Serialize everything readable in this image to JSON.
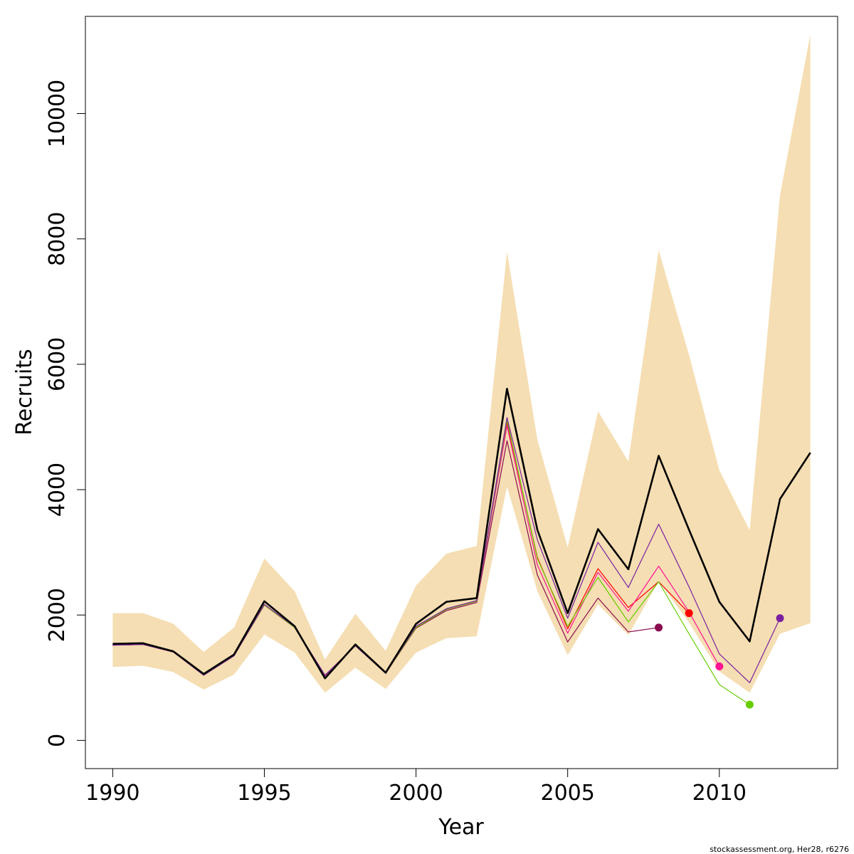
{
  "chart_data": {
    "type": "line",
    "xlabel": "Year",
    "ylabel": "Recruits",
    "xlim": [
      1989.1,
      2013.9
    ],
    "ylim": [
      -450,
      11550
    ],
    "x_ticks": [
      1990,
      1995,
      2000,
      2005,
      2010
    ],
    "y_ticks": [
      0,
      2000,
      4000,
      6000,
      8000,
      10000
    ],
    "grid": false,
    "legend": "none",
    "band": {
      "color": "#f5deb3",
      "x": [
        1990,
        1991,
        1992,
        1993,
        1994,
        1995,
        1996,
        1997,
        1998,
        1999,
        2000,
        2001,
        2002,
        2003,
        2004,
        2005,
        2006,
        2007,
        2008,
        2009,
        2010,
        2011,
        2012,
        2013
      ],
      "lower": [
        1170,
        1190,
        1090,
        810,
        1050,
        1690,
        1400,
        760,
        1160,
        820,
        1400,
        1630,
        1660,
        4050,
        2380,
        1360,
        2170,
        1680,
        2540,
        1880,
        1100,
        760,
        1700,
        1870
      ],
      "upper": [
        2030,
        2030,
        1860,
        1410,
        1800,
        2900,
        2380,
        1290,
        2020,
        1430,
        2470,
        2980,
        3100,
        7800,
        4800,
        3080,
        5250,
        4450,
        7820,
        6150,
        4310,
        3350,
        8700,
        11260
      ]
    },
    "series": [
      {
        "color": "#8b0a50",
        "width": 1.2,
        "end_point": true,
        "x": [
          1990,
          1991,
          1992,
          1993,
          1994,
          1995,
          1996,
          1997,
          1998,
          1999,
          2000,
          2001,
          2002,
          2003,
          2004,
          2005,
          2006,
          2007,
          2008
        ],
        "values": [
          1520,
          1530,
          1410,
          1040,
          1350,
          2160,
          1800,
          1030,
          1510,
          1070,
          1790,
          2070,
          2200,
          4780,
          2640,
          1570,
          2270,
          1730,
          1800
        ]
      },
      {
        "color": "#ff0000",
        "width": 1.2,
        "end_point": true,
        "x": [
          1990,
          1991,
          1992,
          1993,
          1994,
          1995,
          1996,
          1997,
          1998,
          1999,
          2000,
          2001,
          2002,
          2003,
          2004,
          2005,
          2006,
          2007,
          2008,
          2009
        ],
        "values": [
          1520,
          1530,
          1410,
          1040,
          1350,
          2160,
          1800,
          1040,
          1510,
          1070,
          1800,
          2090,
          2220,
          5070,
          2920,
          1780,
          2740,
          2120,
          2530,
          2030
        ]
      },
      {
        "color": "#ff1493",
        "width": 1.2,
        "end_point": true,
        "x": [
          1990,
          1991,
          1992,
          1993,
          1994,
          1995,
          1996,
          1997,
          1998,
          1999,
          2000,
          2001,
          2002,
          2003,
          2004,
          2005,
          2006,
          2007,
          2008,
          2009,
          2010
        ],
        "values": [
          1520,
          1530,
          1410,
          1040,
          1350,
          2160,
          1800,
          1040,
          1510,
          1070,
          1800,
          2090,
          2220,
          5020,
          2800,
          1710,
          2680,
          2060,
          2780,
          2050,
          1180
        ]
      },
      {
        "color": "#66cd00",
        "width": 1.2,
        "end_point": true,
        "x": [
          1990,
          1991,
          1992,
          1993,
          1994,
          1995,
          1996,
          1997,
          1998,
          1999,
          2000,
          2001,
          2002,
          2003,
          2004,
          2005,
          2006,
          2007,
          2008,
          2009,
          2010,
          2011
        ],
        "values": [
          1520,
          1530,
          1410,
          1040,
          1350,
          2160,
          1800,
          1040,
          1510,
          1070,
          1800,
          2090,
          2220,
          5110,
          2900,
          1820,
          2600,
          1890,
          2530,
          1700,
          890,
          570
        ]
      },
      {
        "color": "#7b1fa2",
        "width": 1.2,
        "end_point": true,
        "x": [
          1990,
          1991,
          1992,
          1993,
          1994,
          1995,
          1996,
          1997,
          1998,
          1999,
          2000,
          2001,
          2002,
          2003,
          2004,
          2005,
          2006,
          2007,
          2008,
          2009,
          2010,
          2011,
          2012
        ],
        "values": [
          1520,
          1530,
          1410,
          1040,
          1350,
          2170,
          1810,
          1040,
          1510,
          1070,
          1820,
          2100,
          2230,
          5150,
          3200,
          1950,
          3160,
          2440,
          3450,
          2450,
          1380,
          920,
          1950
        ]
      },
      {
        "color": "#000000",
        "width": 2.6,
        "end_point": false,
        "x": [
          1990,
          1991,
          1992,
          1993,
          1994,
          1995,
          1996,
          1997,
          1998,
          1999,
          2000,
          2001,
          2002,
          2003,
          2004,
          2005,
          2006,
          2007,
          2008,
          2009,
          2010,
          2011,
          2012,
          2013
        ],
        "values": [
          1540,
          1550,
          1420,
          1060,
          1370,
          2220,
          1820,
          990,
          1530,
          1080,
          1860,
          2210,
          2270,
          5610,
          3360,
          2030,
          3370,
          2730,
          4540,
          3360,
          2210,
          1580,
          3850,
          4590
        ]
      }
    ]
  },
  "footer_note": "stockassessment.org, Her28, r6276"
}
